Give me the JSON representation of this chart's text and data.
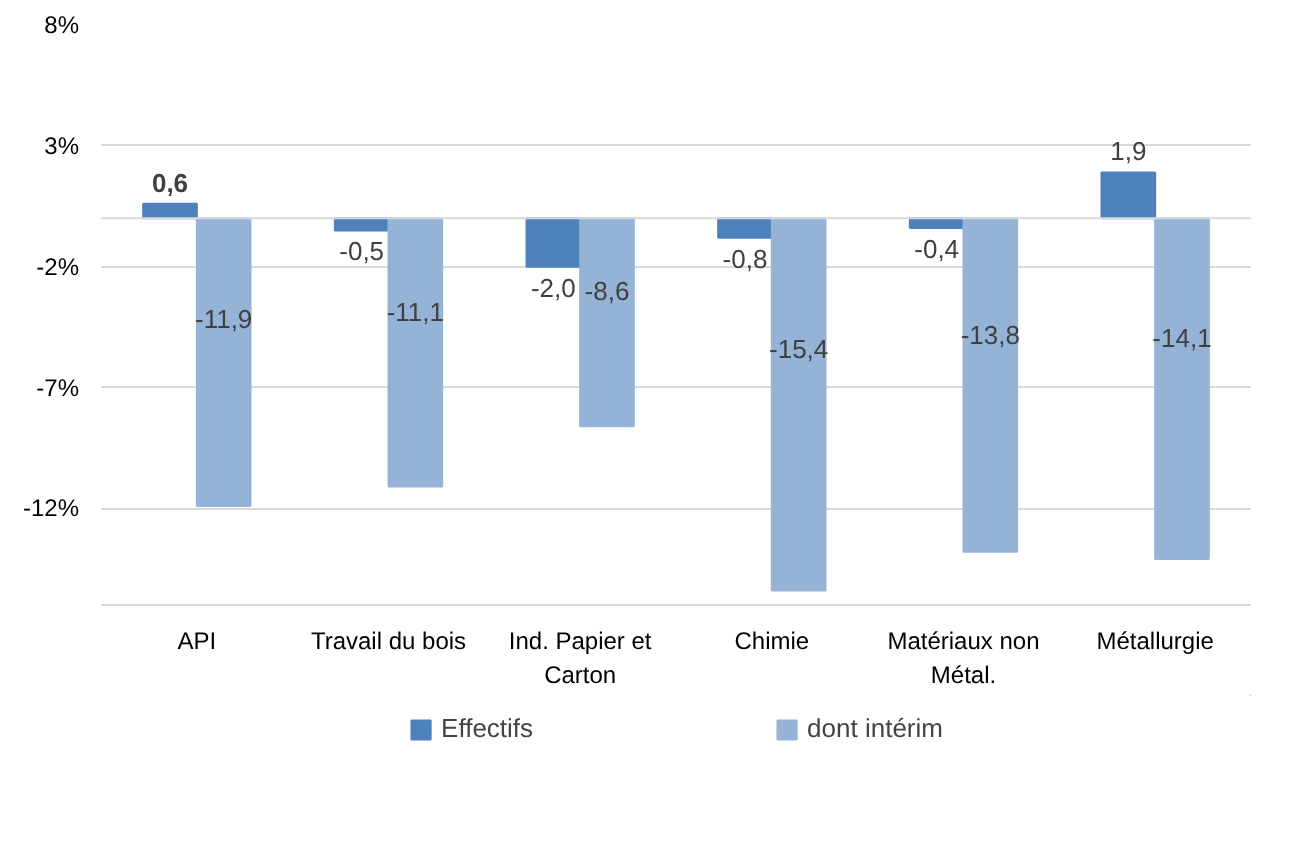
{
  "chart_data": {
    "type": "bar",
    "categories": [
      "API",
      "Travail du bois",
      "Ind. Papier et Carton",
      "Chimie",
      "Matériaux non Métal.",
      "Métallurgie"
    ],
    "series": [
      {
        "name": "Effectifs",
        "color": "#4f81bd",
        "values": [
          0.6,
          -0.5,
          -2.0,
          -0.8,
          -0.4,
          1.9
        ],
        "value_labels": [
          "0,6",
          "-0,5",
          "-2,0",
          "-0,8",
          "-0,4",
          "1,9"
        ]
      },
      {
        "name": "dont intérim",
        "color": "#95b3d7",
        "values": [
          -11.9,
          -11.1,
          -8.6,
          -15.4,
          -13.8,
          -14.1
        ],
        "value_labels": [
          "-11,9",
          "-11,1",
          "-8,6",
          "-15,4",
          "-13,8",
          "-14,1"
        ]
      }
    ],
    "ylim": [
      -16,
      8
    ],
    "yticks": [
      {
        "value": 8,
        "label": "8%"
      },
      {
        "value": 3,
        "label": "3%"
      },
      {
        "value": -2,
        "label": "-2%"
      },
      {
        "value": -7,
        "label": "-7%"
      },
      {
        "value": -12,
        "label": "-12%"
      }
    ],
    "grid": "y",
    "legend": "bottom"
  }
}
